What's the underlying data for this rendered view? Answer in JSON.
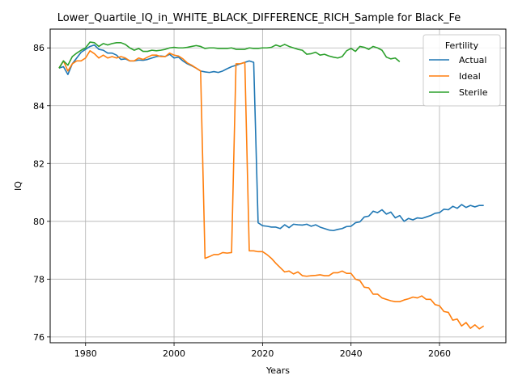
{
  "chart_data": {
    "type": "line",
    "title": "Lower_Quartile_IQ_in_WHITE_BLACK_DIFFERENCE_RICH_Sample for Black_Fe",
    "xlabel": "Years",
    "ylabel": "IQ",
    "xlim": [
      1972,
      2075
    ],
    "ylim": [
      75.8,
      86.65
    ],
    "xticks": [
      1980,
      2000,
      2020,
      2040,
      2060
    ],
    "yticks": [
      76,
      78,
      80,
      82,
      84,
      86
    ],
    "grid": true,
    "legend": {
      "title": "Fertility",
      "placement": "top-right"
    },
    "series": [
      {
        "name": "Actual",
        "color": "#1f77b4",
        "points": [
          [
            1974,
            85.3
          ],
          [
            1975,
            85.35
          ],
          [
            1976,
            85.08
          ],
          [
            1977,
            85.45
          ],
          [
            1978,
            85.65
          ],
          [
            1979,
            85.85
          ],
          [
            1980,
            85.95
          ],
          [
            1981,
            86.05
          ],
          [
            1982,
            86.1
          ],
          [
            1983,
            85.95
          ],
          [
            1984,
            85.92
          ],
          [
            1985,
            85.82
          ],
          [
            1986,
            85.82
          ],
          [
            1987,
            85.75
          ],
          [
            1988,
            85.6
          ],
          [
            1989,
            85.62
          ],
          [
            1990,
            85.55
          ],
          [
            1991,
            85.55
          ],
          [
            1992,
            85.58
          ],
          [
            1993,
            85.57
          ],
          [
            1994,
            85.6
          ],
          [
            1995,
            85.65
          ],
          [
            1996,
            85.7
          ],
          [
            1997,
            85.72
          ],
          [
            1998,
            85.7
          ],
          [
            1999,
            85.78
          ],
          [
            2000,
            85.65
          ],
          [
            2001,
            85.68
          ],
          [
            2002,
            85.55
          ],
          [
            2003,
            85.45
          ],
          [
            2004,
            85.38
          ],
          [
            2005,
            85.3
          ],
          [
            2006,
            85.2
          ],
          [
            2007,
            85.17
          ],
          [
            2008,
            85.15
          ],
          [
            2009,
            85.18
          ],
          [
            2010,
            85.15
          ],
          [
            2011,
            85.2
          ],
          [
            2012,
            85.28
          ],
          [
            2013,
            85.35
          ],
          [
            2014,
            85.4
          ],
          [
            2015,
            85.45
          ],
          [
            2016,
            85.5
          ],
          [
            2017,
            85.55
          ],
          [
            2018,
            85.5
          ],
          [
            2019,
            79.95
          ],
          [
            2020,
            79.85
          ],
          [
            2021,
            79.83
          ],
          [
            2022,
            79.8
          ],
          [
            2023,
            79.8
          ],
          [
            2024,
            79.75
          ],
          [
            2025,
            79.88
          ],
          [
            2026,
            79.78
          ],
          [
            2027,
            79.9
          ],
          [
            2028,
            79.88
          ],
          [
            2029,
            79.87
          ],
          [
            2030,
            79.9
          ],
          [
            2031,
            79.83
          ],
          [
            2032,
            79.88
          ],
          [
            2033,
            79.8
          ],
          [
            2034,
            79.75
          ],
          [
            2035,
            79.7
          ],
          [
            2036,
            79.68
          ],
          [
            2037,
            79.72
          ],
          [
            2038,
            79.75
          ],
          [
            2039,
            79.82
          ],
          [
            2040,
            79.83
          ],
          [
            2041,
            79.95
          ],
          [
            2042,
            79.98
          ],
          [
            2043,
            80.15
          ],
          [
            2044,
            80.18
          ],
          [
            2045,
            80.35
          ],
          [
            2046,
            80.3
          ],
          [
            2047,
            80.4
          ],
          [
            2048,
            80.25
          ],
          [
            2049,
            80.32
          ],
          [
            2050,
            80.12
          ],
          [
            2051,
            80.2
          ],
          [
            2052,
            80.0
          ],
          [
            2053,
            80.1
          ],
          [
            2054,
            80.05
          ],
          [
            2055,
            80.12
          ],
          [
            2056,
            80.1
          ],
          [
            2057,
            80.15
          ],
          [
            2058,
            80.2
          ],
          [
            2059,
            80.28
          ],
          [
            2060,
            80.3
          ],
          [
            2061,
            80.42
          ],
          [
            2062,
            80.4
          ],
          [
            2063,
            80.52
          ],
          [
            2064,
            80.45
          ],
          [
            2065,
            80.58
          ],
          [
            2066,
            80.48
          ],
          [
            2067,
            80.55
          ],
          [
            2068,
            80.5
          ],
          [
            2069,
            80.55
          ],
          [
            2070,
            80.55
          ]
        ]
      },
      {
        "name": "Ideal",
        "color": "#ff7f0e",
        "points": [
          [
            1974,
            85.3
          ],
          [
            1975,
            85.55
          ],
          [
            1976,
            85.2
          ],
          [
            1977,
            85.45
          ],
          [
            1978,
            85.55
          ],
          [
            1979,
            85.55
          ],
          [
            1980,
            85.65
          ],
          [
            1981,
            85.9
          ],
          [
            1982,
            85.8
          ],
          [
            1983,
            85.65
          ],
          [
            1984,
            85.75
          ],
          [
            1985,
            85.65
          ],
          [
            1986,
            85.7
          ],
          [
            1987,
            85.65
          ],
          [
            1988,
            85.7
          ],
          [
            1989,
            85.65
          ],
          [
            1990,
            85.55
          ],
          [
            1991,
            85.55
          ],
          [
            1992,
            85.65
          ],
          [
            1993,
            85.6
          ],
          [
            1994,
            85.68
          ],
          [
            1995,
            85.75
          ],
          [
            1996,
            85.75
          ],
          [
            1997,
            85.7
          ],
          [
            1998,
            85.7
          ],
          [
            1999,
            85.82
          ],
          [
            2000,
            85.75
          ],
          [
            2001,
            85.72
          ],
          [
            2002,
            85.62
          ],
          [
            2003,
            85.48
          ],
          [
            2004,
            85.4
          ],
          [
            2005,
            85.3
          ],
          [
            2006,
            85.2
          ],
          [
            2007,
            78.72
          ],
          [
            2008,
            78.78
          ],
          [
            2009,
            78.85
          ],
          [
            2010,
            78.85
          ],
          [
            2011,
            78.92
          ],
          [
            2012,
            78.9
          ],
          [
            2013,
            78.92
          ],
          [
            2014,
            85.45
          ],
          [
            2015,
            85.45
          ],
          [
            2016,
            85.5
          ],
          [
            2017,
            78.98
          ],
          [
            2018,
            78.98
          ],
          [
            2019,
            78.95
          ],
          [
            2020,
            78.95
          ],
          [
            2021,
            78.85
          ],
          [
            2022,
            78.72
          ],
          [
            2023,
            78.55
          ],
          [
            2024,
            78.4
          ],
          [
            2025,
            78.25
          ],
          [
            2026,
            78.28
          ],
          [
            2027,
            78.18
          ],
          [
            2028,
            78.25
          ],
          [
            2029,
            78.12
          ],
          [
            2030,
            78.1
          ],
          [
            2031,
            78.12
          ],
          [
            2032,
            78.13
          ],
          [
            2033,
            78.15
          ],
          [
            2034,
            78.12
          ],
          [
            2035,
            78.12
          ],
          [
            2036,
            78.22
          ],
          [
            2037,
            78.22
          ],
          [
            2038,
            78.28
          ],
          [
            2039,
            78.2
          ],
          [
            2040,
            78.2
          ],
          [
            2041,
            78.0
          ],
          [
            2042,
            77.95
          ],
          [
            2043,
            77.72
          ],
          [
            2044,
            77.7
          ],
          [
            2045,
            77.48
          ],
          [
            2046,
            77.48
          ],
          [
            2047,
            77.35
          ],
          [
            2048,
            77.3
          ],
          [
            2049,
            77.25
          ],
          [
            2050,
            77.22
          ],
          [
            2051,
            77.22
          ],
          [
            2052,
            77.28
          ],
          [
            2053,
            77.32
          ],
          [
            2054,
            77.38
          ],
          [
            2055,
            77.35
          ],
          [
            2056,
            77.42
          ],
          [
            2057,
            77.3
          ],
          [
            2058,
            77.3
          ],
          [
            2059,
            77.12
          ],
          [
            2060,
            77.08
          ],
          [
            2061,
            76.88
          ],
          [
            2062,
            76.85
          ],
          [
            2063,
            76.58
          ],
          [
            2064,
            76.62
          ],
          [
            2065,
            76.38
          ],
          [
            2066,
            76.5
          ],
          [
            2067,
            76.3
          ],
          [
            2068,
            76.42
          ],
          [
            2069,
            76.28
          ],
          [
            2070,
            76.38
          ]
        ]
      },
      {
        "name": "Sterile",
        "color": "#2ca02c",
        "points": [
          [
            1974,
            85.3
          ],
          [
            1975,
            85.55
          ],
          [
            1976,
            85.4
          ],
          [
            1977,
            85.7
          ],
          [
            1978,
            85.82
          ],
          [
            1979,
            85.92
          ],
          [
            1980,
            86.0
          ],
          [
            1981,
            86.2
          ],
          [
            1982,
            86.18
          ],
          [
            1983,
            86.05
          ],
          [
            1984,
            86.15
          ],
          [
            1985,
            86.1
          ],
          [
            1986,
            86.15
          ],
          [
            1987,
            86.18
          ],
          [
            1988,
            86.18
          ],
          [
            1989,
            86.12
          ],
          [
            1990,
            86.0
          ],
          [
            1991,
            85.92
          ],
          [
            1992,
            85.98
          ],
          [
            1993,
            85.88
          ],
          [
            1994,
            85.88
          ],
          [
            1995,
            85.92
          ],
          [
            1996,
            85.9
          ],
          [
            1997,
            85.92
          ],
          [
            1998,
            85.95
          ],
          [
            1999,
            86.0
          ],
          [
            2000,
            86.02
          ],
          [
            2001,
            86.0
          ],
          [
            2002,
            86.0
          ],
          [
            2003,
            86.02
          ],
          [
            2004,
            86.05
          ],
          [
            2005,
            86.08
          ],
          [
            2006,
            86.05
          ],
          [
            2007,
            85.98
          ],
          [
            2008,
            86.0
          ],
          [
            2009,
            86.0
          ],
          [
            2010,
            85.98
          ],
          [
            2011,
            85.98
          ],
          [
            2012,
            85.98
          ],
          [
            2013,
            86.0
          ],
          [
            2014,
            85.95
          ],
          [
            2015,
            85.95
          ],
          [
            2016,
            85.95
          ],
          [
            2017,
            86.0
          ],
          [
            2018,
            85.98
          ],
          [
            2019,
            85.98
          ],
          [
            2020,
            86.0
          ],
          [
            2021,
            86.0
          ],
          [
            2022,
            86.02
          ],
          [
            2023,
            86.1
          ],
          [
            2024,
            86.05
          ],
          [
            2025,
            86.12
          ],
          [
            2026,
            86.05
          ],
          [
            2027,
            86.0
          ],
          [
            2028,
            85.95
          ],
          [
            2029,
            85.92
          ],
          [
            2030,
            85.78
          ],
          [
            2031,
            85.8
          ],
          [
            2032,
            85.85
          ],
          [
            2033,
            85.75
          ],
          [
            2034,
            85.78
          ],
          [
            2035,
            85.72
          ],
          [
            2036,
            85.68
          ],
          [
            2037,
            85.65
          ],
          [
            2038,
            85.7
          ],
          [
            2039,
            85.9
          ],
          [
            2040,
            85.98
          ],
          [
            2041,
            85.88
          ],
          [
            2042,
            86.05
          ],
          [
            2043,
            86.02
          ],
          [
            2044,
            85.95
          ],
          [
            2045,
            86.05
          ],
          [
            2046,
            86.0
          ],
          [
            2047,
            85.92
          ],
          [
            2048,
            85.68
          ],
          [
            2049,
            85.62
          ],
          [
            2050,
            85.65
          ],
          [
            2051,
            85.52
          ]
        ]
      }
    ]
  }
}
